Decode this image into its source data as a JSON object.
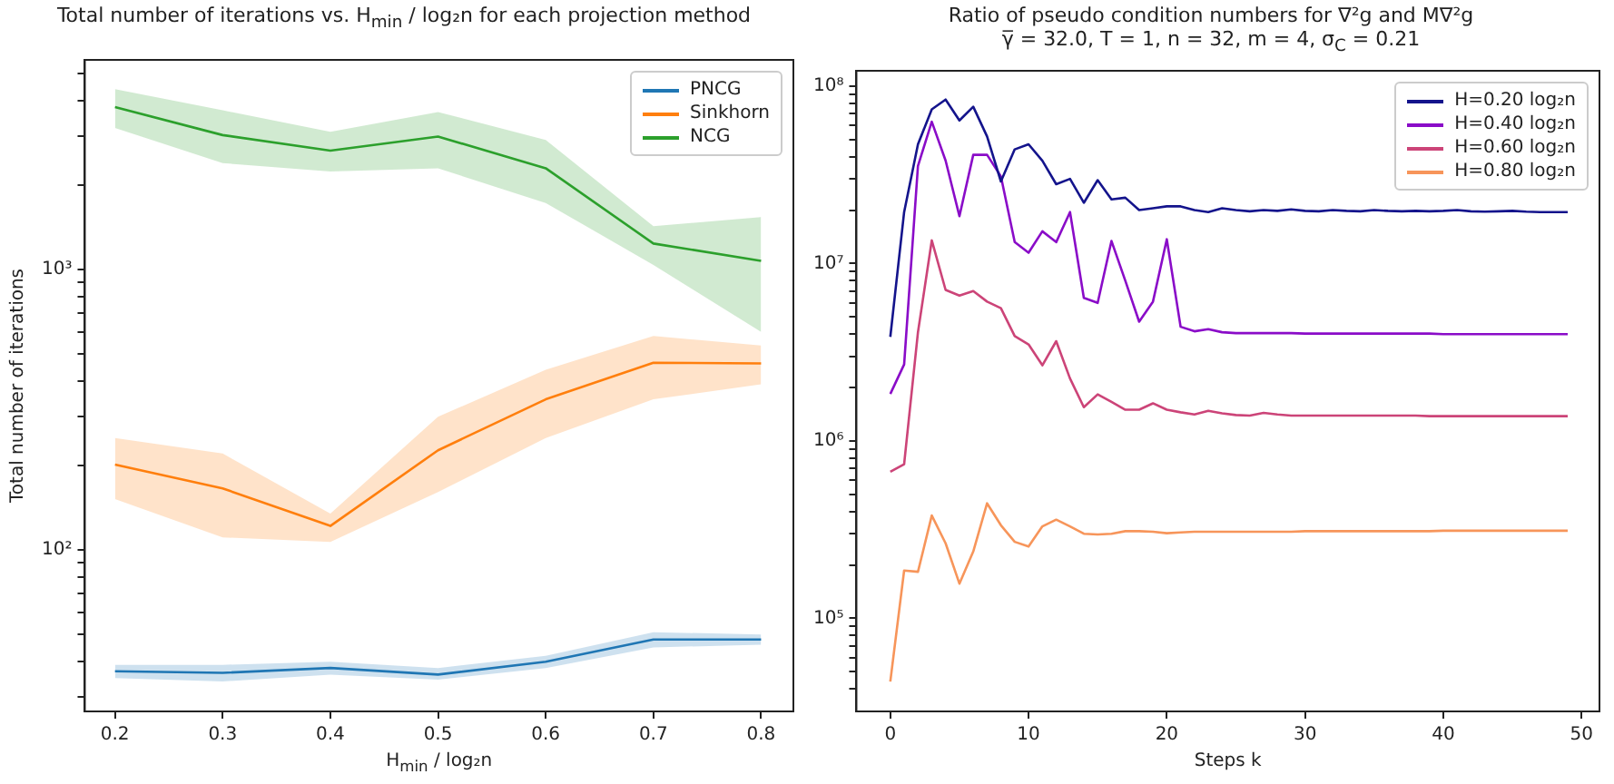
{
  "chart_data": [
    {
      "type": "line",
      "title": "Total number of iterations vs. H$_{min}$ / log₂n for each projection method",
      "xlabel": "H$_{min}$ / log₂n",
      "ylabel": "Total number of iterations",
      "log": true,
      "legend": "top right",
      "x": [
        0.2,
        0.3,
        0.4,
        0.5,
        0.6,
        0.7,
        0.8
      ],
      "xlim": [
        0.172,
        0.83
      ],
      "xticks": [
        0.2,
        0.3,
        0.4,
        0.5,
        0.6,
        0.7,
        0.8
      ],
      "ylim": [
        26.6,
        5600
      ],
      "yticks": [
        {
          "value": 30,
          "label": null
        },
        {
          "value": 40,
          "label": null
        },
        {
          "value": 50,
          "label": null
        },
        {
          "value": 60,
          "label": null
        },
        {
          "value": 70,
          "label": null
        },
        {
          "value": 80,
          "label": null
        },
        {
          "value": 90,
          "label": null
        },
        {
          "value": 100,
          "label": "10²"
        },
        {
          "value": 200,
          "label": null
        },
        {
          "value": 300,
          "label": null
        },
        {
          "value": 400,
          "label": null
        },
        {
          "value": 500,
          "label": null
        },
        {
          "value": 600,
          "label": null
        },
        {
          "value": 700,
          "label": null
        },
        {
          "value": 800,
          "label": null
        },
        {
          "value": 900,
          "label": null
        },
        {
          "value": 1000,
          "label": "10³"
        },
        {
          "value": 2000,
          "label": null
        },
        {
          "value": 3000,
          "label": null
        },
        {
          "value": 4000,
          "label": null
        },
        {
          "value": 5000,
          "label": null
        }
      ],
      "series": [
        {
          "name": "PNCG",
          "color": "#1f77b4",
          "values": [
            37,
            36.5,
            38,
            36,
            40,
            48,
            48
          ],
          "lower": [
            35,
            34,
            36,
            34.5,
            38,
            45,
            46
          ],
          "upper": [
            39,
            39,
            40,
            38,
            42,
            51,
            50
          ]
        },
        {
          "name": "Sinkhorn",
          "color": "#ff7f0e",
          "values": [
            202,
            166,
            122,
            227,
            345,
            466,
            463
          ],
          "lower": [
            152,
            111,
            107,
            161,
            251,
            345,
            390
          ],
          "upper": [
            251,
            221,
            135,
            299,
            440,
            580,
            537
          ]
        },
        {
          "name": "NCG",
          "color": "#2ca02c",
          "values": [
            3800,
            3020,
            2660,
            2985,
            2300,
            1240,
            1075
          ],
          "lower": [
            3200,
            2400,
            2240,
            2300,
            1730,
            1040,
            600
          ],
          "upper": [
            4400,
            3700,
            3100,
            3650,
            2900,
            1430,
            1540
          ]
        }
      ]
    },
    {
      "type": "line",
      "title": "Ratio of pseudo condition numbers for ∇²g and M∇²g",
      "subtitle": "γ̅ = 32.0, T = 1, n = 32, m = 4, σ$_{C}$ = 0.21",
      "xlabel": "Steps k",
      "log": true,
      "legend": "top right",
      "x": [
        0,
        1,
        2,
        3,
        4,
        5,
        6,
        7,
        8,
        9,
        10,
        11,
        12,
        13,
        14,
        15,
        16,
        17,
        18,
        19,
        20,
        21,
        22,
        23,
        24,
        25,
        26,
        27,
        28,
        29,
        30,
        31,
        32,
        33,
        34,
        35,
        36,
        37,
        38,
        39,
        40,
        41,
        42,
        43,
        44,
        45,
        46,
        47,
        48,
        49
      ],
      "xlim": [
        -2.45,
        51.3
      ],
      "xticks": [
        0,
        10,
        20,
        30,
        40,
        50
      ],
      "ylim": [
        29900,
        122000000
      ],
      "yticks": [
        {
          "value": 40000,
          "label": null
        },
        {
          "value": 50000,
          "label": null
        },
        {
          "value": 60000,
          "label": null
        },
        {
          "value": 70000,
          "label": null
        },
        {
          "value": 80000,
          "label": null
        },
        {
          "value": 90000,
          "label": null
        },
        {
          "value": 100000,
          "label": "10⁵"
        },
        {
          "value": 200000,
          "label": null
        },
        {
          "value": 300000,
          "label": null
        },
        {
          "value": 400000,
          "label": null
        },
        {
          "value": 500000,
          "label": null
        },
        {
          "value": 600000,
          "label": null
        },
        {
          "value": 700000,
          "label": null
        },
        {
          "value": 800000,
          "label": null
        },
        {
          "value": 900000,
          "label": null
        },
        {
          "value": 1000000,
          "label": "10⁶"
        },
        {
          "value": 2000000,
          "label": null
        },
        {
          "value": 3000000,
          "label": null
        },
        {
          "value": 4000000,
          "label": null
        },
        {
          "value": 5000000,
          "label": null
        },
        {
          "value": 6000000,
          "label": null
        },
        {
          "value": 7000000,
          "label": null
        },
        {
          "value": 8000000,
          "label": null
        },
        {
          "value": 9000000,
          "label": null
        },
        {
          "value": 10000000,
          "label": "10⁷"
        },
        {
          "value": 20000000,
          "label": null
        },
        {
          "value": 30000000,
          "label": null
        },
        {
          "value": 40000000,
          "label": null
        },
        {
          "value": 50000000,
          "label": null
        },
        {
          "value": 60000000,
          "label": null
        },
        {
          "value": 70000000,
          "label": null
        },
        {
          "value": 80000000,
          "label": null
        },
        {
          "value": 90000000,
          "label": null
        },
        {
          "value": 100000000,
          "label": "10⁸"
        }
      ],
      "series": [
        {
          "name": "H=0.20 log₂n",
          "color": "#14148c",
          "values": [
            3860000,
            19500000,
            47000000,
            74000000,
            84000000,
            64000000,
            76500000,
            52000000,
            29000000,
            44000000,
            47000000,
            38000000,
            28000000,
            30000000,
            22000000,
            29500000,
            23000000,
            23500000,
            20000000,
            20500000,
            21000000,
            21000000,
            20000000,
            19500000,
            20500000,
            20000000,
            19700000,
            20000000,
            19800000,
            20200000,
            19800000,
            19700000,
            20000000,
            19800000,
            19700000,
            20000000,
            19800000,
            19700000,
            19800000,
            19700000,
            19800000,
            20000000,
            19700000,
            19600000,
            19700000,
            19800000,
            19600000,
            19500000,
            19500000,
            19500000
          ]
        },
        {
          "name": "H=0.40 log₂n",
          "color": "#8a0cc8",
          "values": [
            1840000,
            2700000,
            35500000,
            63000000,
            38000000,
            18500000,
            41000000,
            41000000,
            31000000,
            13200000,
            11500000,
            15200000,
            13200000,
            19500000,
            6400000,
            6000000,
            13400000,
            8000000,
            4700000,
            6100000,
            13700000,
            4400000,
            4150000,
            4270000,
            4100000,
            4050000,
            4050000,
            4050000,
            4050000,
            4050000,
            4030000,
            4030000,
            4030000,
            4030000,
            4030000,
            4030000,
            4030000,
            4030000,
            4030000,
            4030000,
            4000000,
            4000000,
            4000000,
            4000000,
            4000000,
            4000000,
            4000000,
            4000000,
            4000000,
            4000000
          ]
        },
        {
          "name": "H=0.60 log₂n",
          "color": "#cc4478",
          "values": [
            670000,
            740000,
            4100000,
            13500000,
            7100000,
            6600000,
            7000000,
            6100000,
            5600000,
            3900000,
            3500000,
            2670000,
            3650000,
            2250000,
            1550000,
            1830000,
            1660000,
            1500000,
            1500000,
            1630000,
            1500000,
            1450000,
            1410000,
            1480000,
            1430000,
            1400000,
            1390000,
            1440000,
            1410000,
            1390000,
            1390000,
            1390000,
            1390000,
            1390000,
            1390000,
            1390000,
            1390000,
            1390000,
            1390000,
            1380000,
            1380000,
            1380000,
            1380000,
            1380000,
            1380000,
            1380000,
            1380000,
            1380000,
            1380000,
            1380000
          ]
        },
        {
          "name": "H=0.80 log₂n",
          "color": "#f7955a",
          "values": [
            44000,
            186000,
            183000,
            380000,
            265000,
            157000,
            238000,
            445000,
            335000,
            270000,
            254000,
            330000,
            360000,
            330000,
            300000,
            297000,
            300000,
            310000,
            310000,
            308000,
            302000,
            305000,
            308000,
            308000,
            308000,
            308000,
            308000,
            308000,
            308000,
            308000,
            310000,
            310000,
            310000,
            310000,
            310000,
            310000,
            310000,
            310000,
            310000,
            310000,
            312000,
            312000,
            312000,
            312000,
            312000,
            312000,
            312000,
            312000,
            312000,
            312000
          ]
        }
      ]
    }
  ]
}
